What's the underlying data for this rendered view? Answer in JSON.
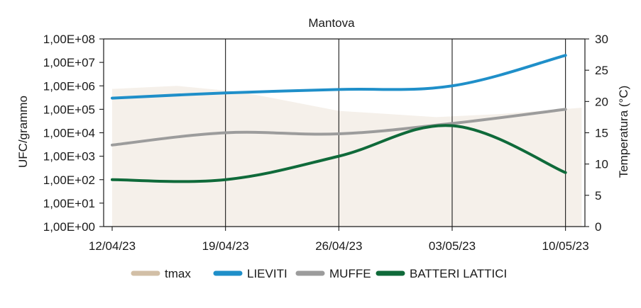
{
  "chart_data": {
    "type": "line",
    "title": "Mantova",
    "ylabel": "UFC/grammo",
    "y2label": "Temperatura (°C)",
    "y_scale": "log",
    "ylim": [
      1,
      100000000
    ],
    "y_ticks": [
      1,
      10,
      100,
      1000,
      10000,
      100000,
      1000000,
      10000000,
      100000000
    ],
    "y_tick_labels": [
      "1,00E+00",
      "1,00E+01",
      "1,00E+02",
      "1,00E+03",
      "1,00E+04",
      "1,00E+05",
      "1,00E+06",
      "1,00E+07",
      "1,00E+08"
    ],
    "y2lim": [
      0,
      30
    ],
    "y2_ticks": [
      0,
      5,
      10,
      15,
      20,
      25,
      30
    ],
    "y2_tick_labels": [
      "0",
      "5",
      "10",
      "15",
      "20",
      "25",
      "30"
    ],
    "x_tick_labels": [
      "12/04/23",
      "19/04/23",
      "26/04/23",
      "03/05/23",
      "10/05/23"
    ],
    "x_range": [
      0,
      29.2
    ],
    "x_tick_days": [
      0,
      7,
      14,
      21,
      28
    ],
    "grid": "vertical",
    "legend_position": "bottom",
    "area_series": {
      "name": "tmax",
      "axis": "right",
      "color": "#d2bfa6",
      "fill_color": "#f5f0ea",
      "x": [
        0,
        4,
        8,
        14,
        20,
        24,
        29
      ],
      "values": [
        22,
        22.5,
        21.5,
        18.5,
        17.5,
        18,
        19
      ]
    },
    "series": [
      {
        "name": "LIEVITI",
        "axis": "left",
        "color": "#1f8fc9",
        "x": [
          0,
          7,
          14,
          21,
          28
        ],
        "values": [
          300000,
          500000,
          700000,
          1000000,
          20000000
        ]
      },
      {
        "name": "MUFFE",
        "axis": "left",
        "color": "#9c9c9c",
        "x": [
          0,
          7,
          14,
          21,
          28
        ],
        "values": [
          3000,
          10000,
          9000,
          25000,
          100000
        ]
      },
      {
        "name": "BATTERI LATTICI",
        "axis": "left",
        "color": "#0f6a3a",
        "x": [
          0,
          7,
          14,
          21,
          28
        ],
        "values": [
          100,
          100,
          1000,
          20000,
          200
        ]
      }
    ]
  },
  "legend": {
    "items": [
      {
        "label": "tmax",
        "color": "#d2bfa6"
      },
      {
        "label": "LIEVITI",
        "color": "#1f8fc9"
      },
      {
        "label": "MUFFE",
        "color": "#9c9c9c"
      },
      {
        "label": "BATTERI LATTICI",
        "color": "#0f6a3a"
      }
    ]
  }
}
